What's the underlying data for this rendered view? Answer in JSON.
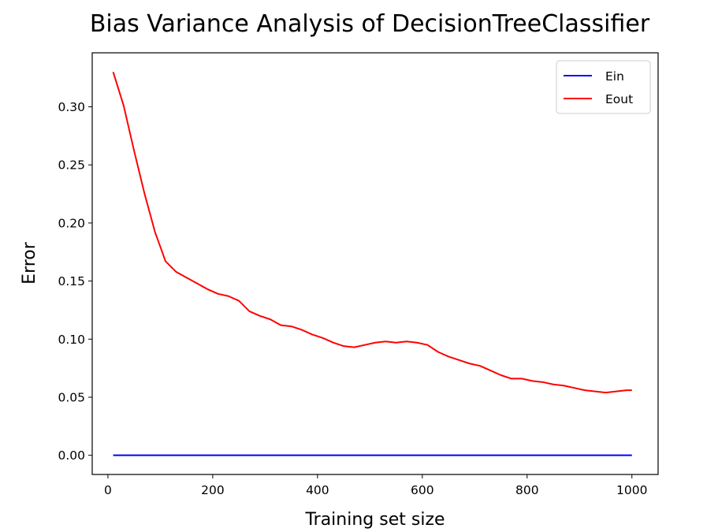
{
  "chart_data": {
    "type": "line",
    "title": "Bias Variance Analysis of DecisionTreeClassifier",
    "xlabel": "Training set size",
    "ylabel": "Error",
    "xlim": [
      -30,
      1050
    ],
    "ylim": [
      -0.0165,
      0.3465
    ],
    "xticks": [
      0,
      200,
      400,
      600,
      800,
      1000
    ],
    "xtick_labels": [
      "0",
      "200",
      "400",
      "600",
      "800",
      "1000"
    ],
    "yticks": [
      0.0,
      0.05,
      0.1,
      0.15,
      0.2,
      0.25,
      0.3
    ],
    "ytick_labels": [
      "0.00",
      "0.05",
      "0.10",
      "0.15",
      "0.20",
      "0.25",
      "0.30"
    ],
    "grid": false,
    "legend_position": "top-right",
    "series": [
      {
        "name": "Ein",
        "color": "#0000ff",
        "x": [
          10,
          1000
        ],
        "y": [
          0.0,
          0.0
        ]
      },
      {
        "name": "Eout",
        "color": "#ff0000",
        "x": [
          10,
          30,
          50,
          70,
          90,
          110,
          130,
          150,
          170,
          190,
          210,
          230,
          250,
          270,
          290,
          310,
          330,
          350,
          370,
          390,
          410,
          430,
          450,
          470,
          490,
          510,
          530,
          550,
          570,
          590,
          610,
          630,
          650,
          670,
          690,
          710,
          730,
          750,
          770,
          790,
          810,
          830,
          850,
          870,
          890,
          910,
          930,
          950,
          970,
          990,
          1000
        ],
        "y": [
          0.33,
          0.301,
          0.262,
          0.225,
          0.192,
          0.167,
          0.158,
          0.153,
          0.148,
          0.143,
          0.139,
          0.137,
          0.133,
          0.124,
          0.12,
          0.117,
          0.112,
          0.111,
          0.108,
          0.104,
          0.101,
          0.097,
          0.094,
          0.093,
          0.095,
          0.097,
          0.098,
          0.097,
          0.098,
          0.097,
          0.095,
          0.089,
          0.085,
          0.082,
          0.079,
          0.077,
          0.073,
          0.069,
          0.066,
          0.066,
          0.064,
          0.063,
          0.061,
          0.06,
          0.058,
          0.056,
          0.055,
          0.054,
          0.055,
          0.056,
          0.056
        ]
      }
    ]
  }
}
